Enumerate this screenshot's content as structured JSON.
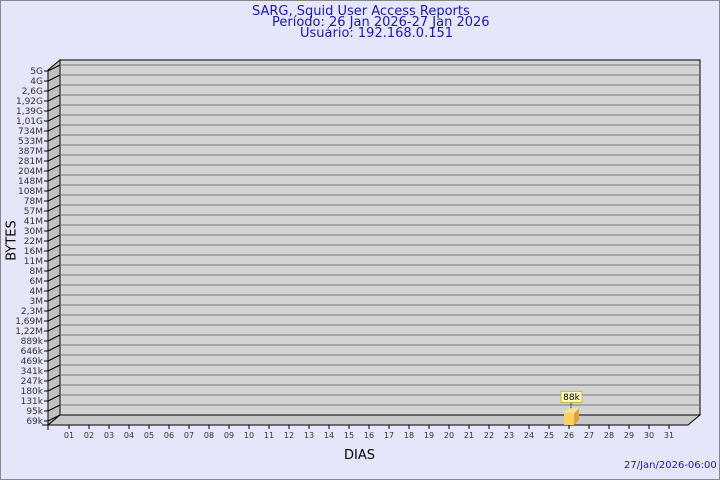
{
  "chart_data": {
    "type": "bar",
    "title": "SARG, Squid User Access Reports",
    "subtitle": [
      "Período: 26 Jan 2026-27 Jan 2026",
      "Usuário: 192.168.0.151"
    ],
    "xlabel": "DIAS",
    "ylabel": "BYTES",
    "y_scale": "log",
    "y_ticks": [
      "5G",
      "4G",
      "2,6G",
      "1,92G",
      "1,39G",
      "1,01G",
      "734M",
      "533M",
      "387M",
      "281M",
      "204M",
      "148M",
      "108M",
      "78M",
      "57M",
      "41M",
      "30M",
      "22M",
      "16M",
      "11M",
      "8M",
      "6M",
      "4M",
      "3M",
      "2,3M",
      "1,69M",
      "1,22M",
      "889k",
      "646k",
      "469k",
      "341k",
      "247k",
      "180k",
      "131k",
      "95k",
      "69k"
    ],
    "categories": [
      "01",
      "02",
      "03",
      "04",
      "05",
      "06",
      "07",
      "08",
      "09",
      "10",
      "11",
      "12",
      "13",
      "14",
      "15",
      "16",
      "17",
      "18",
      "19",
      "20",
      "21",
      "22",
      "23",
      "24",
      "25",
      "26",
      "27",
      "28",
      "29",
      "30",
      "31"
    ],
    "bars": [
      {
        "category": "26",
        "value": 88000,
        "label": "88k"
      }
    ],
    "grid": true,
    "colors": {
      "bar": "#ffcc66",
      "bar_side": "#e0a040",
      "plot_bg": "#d3d3d3",
      "text": "#1a1aa6"
    }
  },
  "footer": {
    "timestamp": "27/Jan/2026-06:00"
  }
}
